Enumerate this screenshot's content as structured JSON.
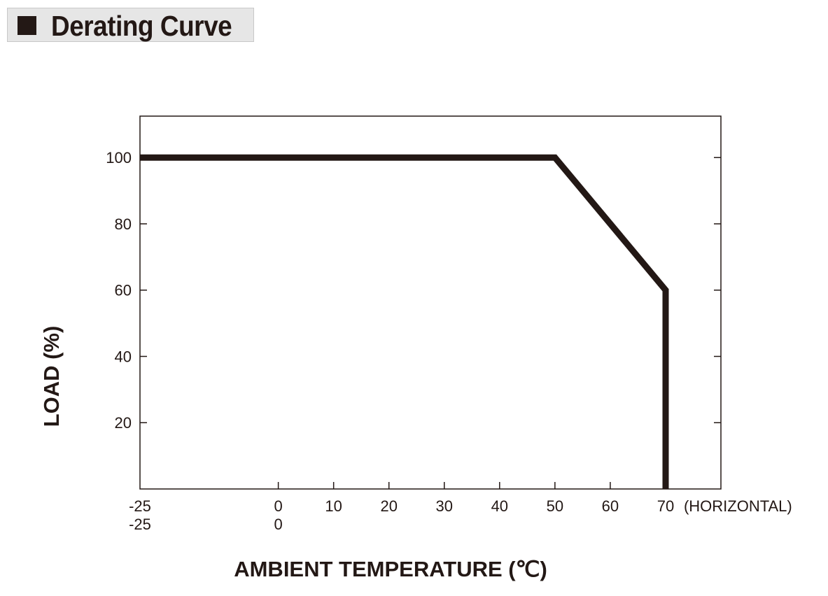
{
  "header": {
    "title": "Derating Curve"
  },
  "colors": {
    "ink": "#231815",
    "heading_bg": "#e6e6e6",
    "frame": "#231815"
  },
  "chart_data": {
    "type": "line",
    "title": "",
    "xlabel": "AMBIENT TEMPERATURE (℃)",
    "ylabel": "LOAD (%)",
    "xlim": [
      -25,
      80
    ],
    "ylim": [
      0,
      112.5
    ],
    "grid": false,
    "x_ticks": [
      {
        "value": -25,
        "label": "-25"
      },
      {
        "value": 0,
        "label": "0"
      },
      {
        "value": 10,
        "label": "10"
      },
      {
        "value": 20,
        "label": "20"
      },
      {
        "value": 30,
        "label": "30"
      },
      {
        "value": 40,
        "label": "40"
      },
      {
        "value": 50,
        "label": "50"
      },
      {
        "value": 60,
        "label": "60"
      },
      {
        "value": 70,
        "label": "70"
      }
    ],
    "x_ticks_row2": [
      {
        "value": -25,
        "label": "-25"
      },
      {
        "value": 0,
        "label": "0"
      }
    ],
    "x_annotation": "(HORIZONTAL)",
    "y_ticks": [
      {
        "value": 20,
        "label": "20"
      },
      {
        "value": 40,
        "label": "40"
      },
      {
        "value": 60,
        "label": "60"
      },
      {
        "value": 80,
        "label": "80"
      },
      {
        "value": 100,
        "label": "100"
      }
    ],
    "series": [
      {
        "x": [
          -25,
          50,
          70,
          70
        ],
        "y": [
          100,
          100,
          60,
          0
        ]
      }
    ]
  }
}
